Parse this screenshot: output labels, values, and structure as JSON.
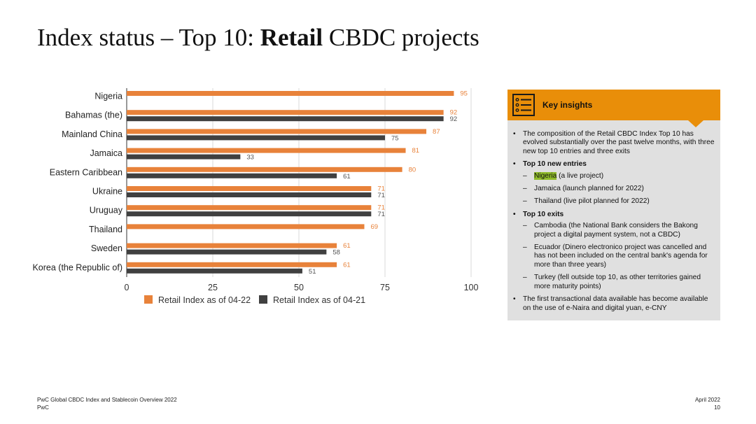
{
  "slide": {
    "title_prefix": "Index status – Top 10: ",
    "title_bold": "Retail",
    "title_suffix": " CBDC projects"
  },
  "chart_data": {
    "type": "bar",
    "orientation": "horizontal",
    "categories": [
      "Nigeria",
      "Bahamas (the)",
      "Mainland China",
      "Jamaica",
      "Eastern Caribbean",
      "Ukraine",
      "Uruguay",
      "Thailand",
      "Sweden",
      "Korea (the Republic of)"
    ],
    "series": [
      {
        "name": "Retail Index as of 04-22",
        "color": "#e8823a",
        "values": [
          95,
          92,
          87,
          81,
          80,
          71,
          71,
          69,
          61,
          61
        ]
      },
      {
        "name": "Retail Index as of 04-21",
        "color": "#404040",
        "values": [
          null,
          92,
          75,
          33,
          61,
          71,
          71,
          null,
          58,
          51
        ]
      }
    ],
    "xlim": [
      0,
      100
    ],
    "xticks": [
      "0",
      "25",
      "50",
      "75",
      "100"
    ],
    "grid": true,
    "legend_position": "bottom"
  },
  "insights": {
    "title": "Key insights",
    "bullet1": "The composition of the Retail CBDC Index Top 10 has evolved substantially over the past twelve months, with three new top 10 entries and three exits",
    "new_entries_heading": "Top 10 new entries",
    "entry1_name": "Nigeria",
    "entry1_rest": " (a live project)",
    "entry2": "Jamaica (launch planned for 2022)",
    "entry3": "Thailand (live pilot planned for 2022)",
    "exits_heading": "Top 10 exits",
    "exit1": "Cambodia (the National Bank considers the Bakong project a digital payment system, not a CBDC)",
    "exit2": "Ecuador (Dinero electronico project was cancelled and has not been included on the central bank's agenda for more than three years)",
    "exit3": "Turkey (fell outside top 10, as other territories gained more maturity points)",
    "bullet_last": "The first transactional data available has become available on the use of e-Naira and digital yuan, e-CNY"
  },
  "footer": {
    "left_line1": "PwC Global CBDC Index and Stablecoin Overview 2022",
    "left_line2": "PwC",
    "right_line1": "April 2022",
    "right_line2": "10"
  }
}
